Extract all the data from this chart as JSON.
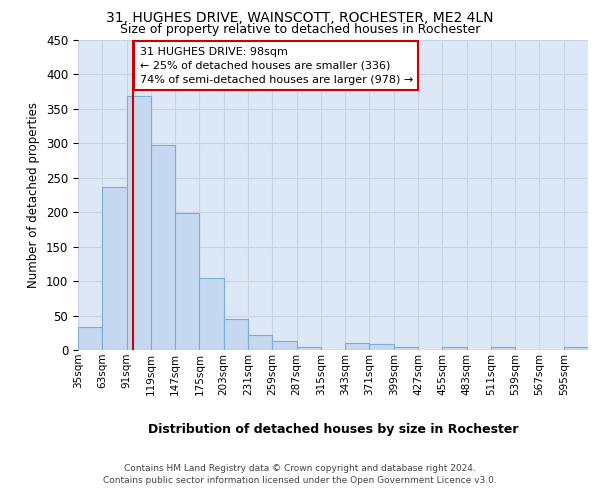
{
  "title1": "31, HUGHES DRIVE, WAINSCOTT, ROCHESTER, ME2 4LN",
  "title2": "Size of property relative to detached houses in Rochester",
  "xlabel": "Distribution of detached houses by size in Rochester",
  "ylabel": "Number of detached properties",
  "bar_color": "#c5d8f0",
  "bar_edgecolor": "#7aafd4",
  "grid_color": "#c8d4e8",
  "background_color": "#dce8f5",
  "property_size": 98,
  "property_line_color": "#cc0000",
  "annotation_text": "31 HUGHES DRIVE: 98sqm\n← 25% of detached houses are smaller (336)\n74% of semi-detached houses are larger (978) →",
  "annotation_box_color": "#cc0000",
  "bin_labels": [
    "35sqm",
    "63sqm",
    "91sqm",
    "119sqm",
    "147sqm",
    "175sqm",
    "203sqm",
    "231sqm",
    "259sqm",
    "287sqm",
    "315sqm",
    "343sqm",
    "371sqm",
    "399sqm",
    "427sqm",
    "455sqm",
    "483sqm",
    "511sqm",
    "539sqm",
    "567sqm",
    "595sqm"
  ],
  "bar_values": [
    33,
    236,
    368,
    297,
    199,
    105,
    45,
    22,
    13,
    5,
    0,
    10,
    9,
    5,
    0,
    4,
    0,
    5,
    0,
    0,
    4
  ],
  "bin_edges": [
    35,
    63,
    91,
    119,
    147,
    175,
    203,
    231,
    259,
    287,
    315,
    343,
    371,
    399,
    427,
    455,
    483,
    511,
    539,
    567,
    595,
    623
  ],
  "ylim": [
    0,
    450
  ],
  "yticks": [
    0,
    50,
    100,
    150,
    200,
    250,
    300,
    350,
    400,
    450
  ],
  "footer_line1": "Contains HM Land Registry data © Crown copyright and database right 2024.",
  "footer_line2": "Contains public sector information licensed under the Open Government Licence v3.0."
}
